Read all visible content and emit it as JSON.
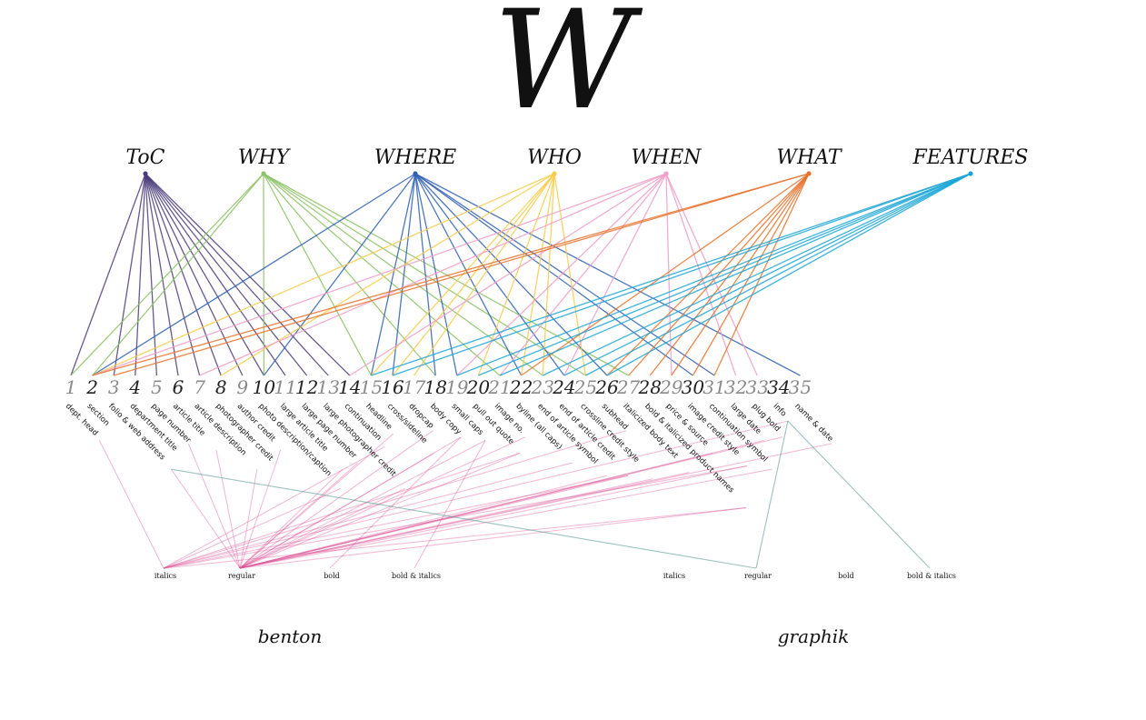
{
  "logo": "W",
  "colors": {
    "toc": "#4b3c7a",
    "why": "#8dc266",
    "where": "#2f5fb0",
    "who": "#f7cd4a",
    "when": "#ef9fc8",
    "what": "#e8722c",
    "features": "#1aa6d6",
    "benton_link": "#d94f93",
    "graphik_link": "#5a9a94",
    "num_dark": "#222222",
    "num_light": "#8a8a8a"
  },
  "categories": [
    {
      "id": "toc",
      "label": "ToC"
    },
    {
      "id": "why",
      "label": "WHY"
    },
    {
      "id": "where",
      "label": "WHERE"
    },
    {
      "id": "who",
      "label": "WHO"
    },
    {
      "id": "when",
      "label": "WHEN"
    },
    {
      "id": "what",
      "label": "WHAT"
    },
    {
      "id": "features",
      "label": "FEATURES"
    }
  ],
  "elements": [
    {
      "num": "1",
      "label": "dept. head",
      "light": true
    },
    {
      "num": "2",
      "label": "section",
      "light": false
    },
    {
      "num": "3",
      "label": "folio & web address",
      "light": true
    },
    {
      "num": "4",
      "label": "department title",
      "light": false
    },
    {
      "num": "5",
      "label": "page number",
      "light": true
    },
    {
      "num": "6",
      "label": "article title",
      "light": false
    },
    {
      "num": "7",
      "label": "article description",
      "light": true
    },
    {
      "num": "8",
      "label": "photographer credit",
      "light": false
    },
    {
      "num": "9",
      "label": "author credit",
      "light": true
    },
    {
      "num": "10",
      "label": "photo description/caption",
      "light": false
    },
    {
      "num": "11",
      "label": "large article title",
      "light": true
    },
    {
      "num": "12",
      "label": "large page number",
      "light": false
    },
    {
      "num": "13",
      "label": "large photographer credit",
      "light": true
    },
    {
      "num": "14",
      "label": "continuation",
      "light": false
    },
    {
      "num": "15",
      "label": "headline",
      "light": true
    },
    {
      "num": "16",
      "label": "cross/sideline",
      "light": false
    },
    {
      "num": "17",
      "label": "dropcap",
      "light": true
    },
    {
      "num": "18",
      "label": "body copy",
      "light": false
    },
    {
      "num": "19",
      "label": "small caps",
      "light": true
    },
    {
      "num": "20",
      "label": "pull out quote",
      "light": false
    },
    {
      "num": "21",
      "label": "image no.",
      "light": true
    },
    {
      "num": "22",
      "label": "byline (all caps)",
      "light": false
    },
    {
      "num": "23",
      "label": "end of article symbol",
      "light": true
    },
    {
      "num": "24",
      "label": "end of article credit",
      "light": false
    },
    {
      "num": "25",
      "label": "crossline credit style",
      "light": true
    },
    {
      "num": "26",
      "label": "subhead",
      "light": false
    },
    {
      "num": "27",
      "label": "italicized body text",
      "light": true
    },
    {
      "num": "28",
      "label": "bold & italicized product names",
      "light": false
    },
    {
      "num": "29",
      "label": "price & source",
      "light": true
    },
    {
      "num": "30",
      "label": "image credit style",
      "light": false
    },
    {
      "num": "31",
      "label": "continuation symbol",
      "light": true
    },
    {
      "num": "32",
      "label": "large date",
      "light": true
    },
    {
      "num": "33",
      "label": "plug bold",
      "light": true
    },
    {
      "num": "34",
      "label": "info",
      "light": false
    },
    {
      "num": "35",
      "label": "name & date",
      "light": true
    }
  ],
  "links": {
    "toc": [
      1,
      3,
      4,
      5,
      6,
      7,
      8,
      9,
      10,
      11,
      12,
      13,
      14
    ],
    "why": [
      1,
      2,
      10,
      15,
      18,
      21,
      23,
      25,
      27
    ],
    "where": [
      2,
      10,
      15,
      16,
      18,
      19,
      22,
      24,
      26,
      30,
      31,
      35
    ],
    "who": [
      2,
      8,
      15,
      16,
      17,
      20,
      22,
      23,
      25
    ],
    "when": [
      2,
      7,
      14,
      19,
      21,
      24,
      29,
      32,
      33
    ],
    "what": [
      2,
      3,
      22,
      26,
      27,
      28,
      29,
      30,
      31
    ],
    "features": [
      15,
      16,
      19,
      20,
      21,
      23,
      24,
      25,
      26
    ]
  },
  "fonts": [
    {
      "name": "benton",
      "weights": [
        {
          "label": "italics",
          "elements": [
            1,
            10,
            14,
            20,
            22,
            24,
            26,
            28,
            30,
            34
          ]
        },
        {
          "label": "regular",
          "elements": [
            3,
            5,
            6,
            7,
            9,
            11,
            12,
            13,
            15,
            16,
            17,
            18,
            19,
            20,
            21,
            23,
            24,
            25,
            27,
            28,
            29,
            30,
            31,
            32,
            33,
            35
          ]
        },
        {
          "label": "bold",
          "elements": [
            18
          ]
        },
        {
          "label": "bold & italics",
          "elements": [
            19
          ]
        }
      ]
    },
    {
      "name": "graphik",
      "weights": [
        {
          "label": "italics",
          "elements": []
        },
        {
          "label": "regular",
          "elements": [
            3,
            34
          ]
        },
        {
          "label": "bold",
          "elements": []
        },
        {
          "label": "bold & italics",
          "elements": [
            34
          ]
        }
      ]
    }
  ]
}
